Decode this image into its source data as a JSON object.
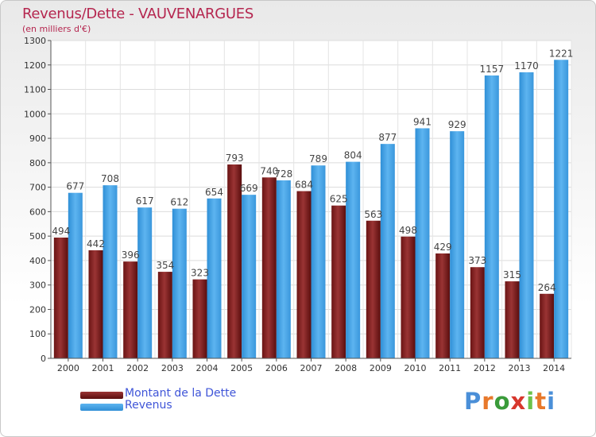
{
  "header": {
    "title": "Revenus/Dette - VAUVENARGUES",
    "subtitle": "(en milliers d'€)"
  },
  "chart_data": {
    "type": "bar",
    "title": "Revenus/Dette - VAUVENARGUES",
    "subtitle": "(en milliers d'€)",
    "categories": [
      "2000",
      "2001",
      "2002",
      "2003",
      "2004",
      "2005",
      "2006",
      "2007",
      "2008",
      "2009",
      "2010",
      "2011",
      "2012",
      "2013",
      "2014"
    ],
    "series": [
      {
        "name": "Montant de la Dette",
        "color": "#8e2a2a",
        "values": [
          494,
          442,
          396,
          354,
          323,
          793,
          740,
          684,
          625,
          563,
          498,
          429,
          373,
          315,
          264
        ]
      },
      {
        "name": "Revenus",
        "color": "#45a4e8",
        "values": [
          677,
          708,
          617,
          612,
          654,
          669,
          728,
          789,
          804,
          877,
          941,
          929,
          1157,
          1170,
          1221
        ]
      }
    ],
    "ylim": [
      0,
      1300
    ],
    "ytick_step": 100,
    "grid": true,
    "legend_position": "bottom-left"
  },
  "legend": {
    "items": [
      {
        "label": "Montant de la Dette",
        "color": "#8e2a2a"
      },
      {
        "label": "Revenus",
        "color": "#45a4e8"
      }
    ]
  },
  "logo": {
    "text": "Proxiti",
    "letter_colors": [
      "#4a8fd8",
      "#e8792b",
      "#3a9b3a",
      "#d7372d",
      "#6cc24a",
      "#e8792b",
      "#4a8fd8"
    ]
  }
}
